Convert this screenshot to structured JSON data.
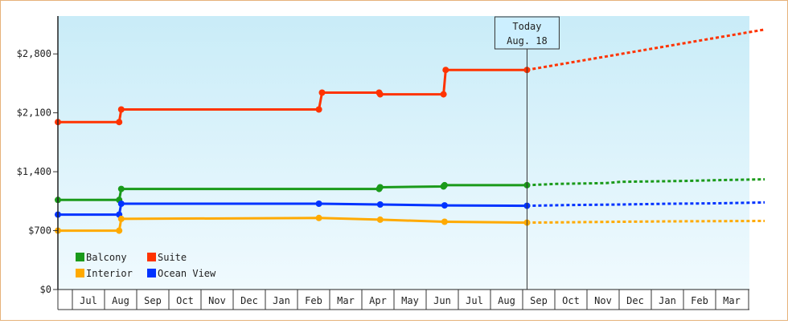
{
  "chart_data": {
    "type": "line",
    "title": "",
    "xlabel": "",
    "ylabel": "",
    "ylim": [
      0,
      3250
    ],
    "y_ticks": [
      0,
      700,
      1400,
      2100,
      2800
    ],
    "y_tick_labels": [
      "$0",
      "$700",
      "$1,400",
      "$2,100",
      "$2,800"
    ],
    "x_range": [
      "2024-06-01",
      "2025-03-31"
    ],
    "month_labels": [
      "Jul",
      "Aug",
      "Sep",
      "Oct",
      "Nov",
      "Dec",
      "Jan",
      "Feb",
      "Mar",
      "Apr",
      "May",
      "Jun",
      "Jul",
      "Aug",
      "Sep",
      "Oct",
      "Nov",
      "Dec",
      "Jan",
      "Feb",
      "Mar"
    ],
    "today": {
      "date": "2024-08-18",
      "label_line1": "Today",
      "label_line2": "Aug. 18"
    },
    "legend": {
      "position": "bottom-left",
      "items": [
        {
          "name": "Balcony",
          "color": "#1a9a1a"
        },
        {
          "name": "Suite",
          "color": "#ff3300"
        },
        {
          "name": "Interior",
          "color": "#ffaa00"
        },
        {
          "name": "Ocean View",
          "color": "#0033ff"
        }
      ]
    },
    "series": [
      {
        "name": "Suite",
        "color": "#ff3300",
        "actual": [
          [
            "2023-06-01",
            1990
          ],
          [
            "2023-07-29",
            1990
          ],
          [
            "2023-07-31",
            2140
          ],
          [
            "2024-02-03",
            2140
          ],
          [
            "2024-02-06",
            2340
          ],
          [
            "2024-03-31",
            2340
          ],
          [
            "2024-04-01",
            2320
          ],
          [
            "2024-05-31",
            2320
          ],
          [
            "2024-06-02",
            2610
          ],
          [
            "2024-08-18",
            2610
          ]
        ],
        "projected": [
          [
            "2024-08-18",
            2610
          ],
          [
            "2025-03-31",
            3090
          ]
        ]
      },
      {
        "name": "Balcony",
        "color": "#1a9a1a",
        "actual": [
          [
            "2023-06-01",
            1065
          ],
          [
            "2023-07-29",
            1065
          ],
          [
            "2023-07-31",
            1195
          ],
          [
            "2024-03-31",
            1195
          ],
          [
            "2024-04-01",
            1215
          ],
          [
            "2024-05-31",
            1225
          ],
          [
            "2024-06-01",
            1240
          ],
          [
            "2024-08-18",
            1240
          ]
        ],
        "projected": [
          [
            "2024-08-18",
            1240
          ],
          [
            "2024-09-15",
            1255
          ],
          [
            "2024-11-01",
            1265
          ],
          [
            "2024-11-15",
            1280
          ],
          [
            "2025-01-15",
            1290
          ],
          [
            "2025-02-15",
            1300
          ],
          [
            "2025-03-31",
            1310
          ]
        ]
      },
      {
        "name": "Ocean View",
        "color": "#0033ff",
        "actual": [
          [
            "2023-06-01",
            890
          ],
          [
            "2023-07-29",
            890
          ],
          [
            "2023-07-31",
            1020
          ],
          [
            "2024-02-03",
            1020
          ],
          [
            "2024-04-01",
            1010
          ],
          [
            "2024-06-01",
            1000
          ],
          [
            "2024-08-18",
            995
          ]
        ],
        "projected": [
          [
            "2024-08-18",
            995
          ],
          [
            "2024-10-01",
            1005
          ],
          [
            "2024-11-15",
            1010
          ],
          [
            "2025-01-01",
            1020
          ],
          [
            "2025-02-15",
            1025
          ],
          [
            "2025-03-31",
            1035
          ]
        ]
      },
      {
        "name": "Interior",
        "color": "#ffaa00",
        "actual": [
          [
            "2023-06-01",
            700
          ],
          [
            "2023-07-29",
            700
          ],
          [
            "2023-07-31",
            840
          ],
          [
            "2024-02-03",
            850
          ],
          [
            "2024-04-01",
            830
          ],
          [
            "2024-06-01",
            805
          ],
          [
            "2024-08-18",
            795
          ]
        ],
        "projected": [
          [
            "2024-08-18",
            795
          ],
          [
            "2024-10-01",
            800
          ],
          [
            "2024-11-15",
            805
          ],
          [
            "2025-01-01",
            810
          ],
          [
            "2025-03-31",
            815
          ]
        ]
      }
    ]
  }
}
